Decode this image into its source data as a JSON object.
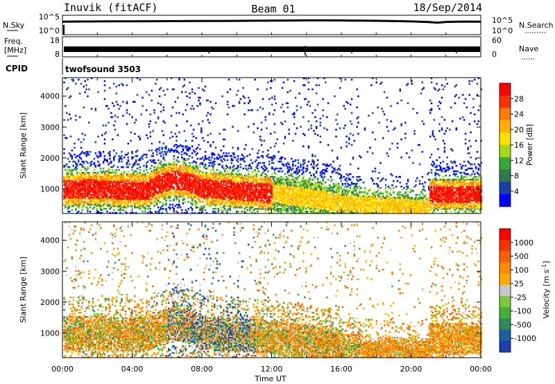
{
  "header": {
    "station": "Inuvik (fitACF)",
    "beam": "Beam 01",
    "date": "18/Sep/2014"
  },
  "chart_data": [
    {
      "type": "line",
      "panel": "noise",
      "left_label": "N.Sky",
      "right_label": "N.Search",
      "right_legend_style": "dotted",
      "left_ticks": [
        "10^5",
        "10^0"
      ],
      "right_ticks": [
        "10^5",
        "10^0"
      ],
      "ylog": true,
      "ylim": [
        1,
        100000
      ],
      "series": [
        {
          "style": "solid",
          "x": [
            0,
            1,
            2,
            3,
            4,
            5,
            6,
            7,
            8,
            9,
            10,
            11,
            12,
            13,
            14,
            15,
            16,
            17,
            18,
            19,
            20,
            21,
            21.5,
            22,
            23,
            24
          ],
          "y": [
            3000,
            3400,
            3700,
            4000,
            4100,
            4300,
            4400,
            4600,
            4800,
            5100,
            5400,
            5800,
            6200,
            6800,
            7400,
            7600,
            7100,
            6300,
            5600,
            4700,
            3700,
            2500,
            1500,
            2600,
            3300,
            3100
          ]
        }
      ]
    },
    {
      "type": "line",
      "panel": "freq-nave",
      "left_label": "Freq. [MHz]",
      "right_label": "Nave",
      "right_legend_style": "dotted",
      "left_ticks": [
        "18",
        "8"
      ],
      "right_ticks": [
        "60",
        "0"
      ],
      "ylim_left": [
        8,
        18
      ],
      "ylim_right": [
        0,
        60
      ],
      "series": [
        {
          "style": "solid",
          "x": [
            0,
            24
          ],
          "y": [
            10.6,
            10.6
          ],
          "band_mhz": [
            10.2,
            11.0
          ]
        }
      ],
      "cpid_label": "CPID",
      "cpid_value": "twofsound 3503"
    },
    {
      "type": "heatmap",
      "panel": "power",
      "title": "",
      "ylabel": "Slant Range [km]",
      "colorbar_label": "Power [dB]",
      "colorbar_ticks": [
        "28",
        "24",
        "20",
        "16",
        "12",
        "8",
        "4"
      ],
      "colorscale": [
        "#0000ff",
        "#1a3fa6",
        "#2f7a4a",
        "#39a83a",
        "#a8d81a",
        "#ffe000",
        "#ffb000",
        "#ff7a00",
        "#ff3000",
        "#ff0000"
      ],
      "ylim": [
        200,
        4600
      ],
      "yticks": [
        "4000",
        "3000",
        "2000",
        "1000"
      ],
      "xlim": [
        0,
        24
      ]
    },
    {
      "type": "heatmap",
      "panel": "velocity",
      "title": "",
      "ylabel": "Slant Range [km]",
      "xlabel": "Time UT",
      "colorbar_label": "Velocity [m s",
      "colorbar_unit_sup": "-1",
      "colorbar_label_end": "]",
      "colorbar_ticks": [
        "1000",
        "500",
        "100",
        "25",
        "-25",
        "-100",
        "-500",
        "-1000"
      ],
      "colorscale": [
        "#1e3fb0",
        "#1a5fa0",
        "#2f8a5a",
        "#46b03a",
        "#7acb3a",
        "#c8c8c8",
        "#ffaa00",
        "#ff8c00",
        "#ff6000",
        "#ff3000",
        "#ff0000"
      ],
      "ylim": [
        200,
        4600
      ],
      "yticks": [
        "4000",
        "3000",
        "2000",
        "1000"
      ],
      "xlim": [
        0,
        24
      ],
      "xticks": [
        "00:00",
        "04:00",
        "08:00",
        "12:00",
        "16:00",
        "20:00",
        "00:00"
      ]
    }
  ]
}
